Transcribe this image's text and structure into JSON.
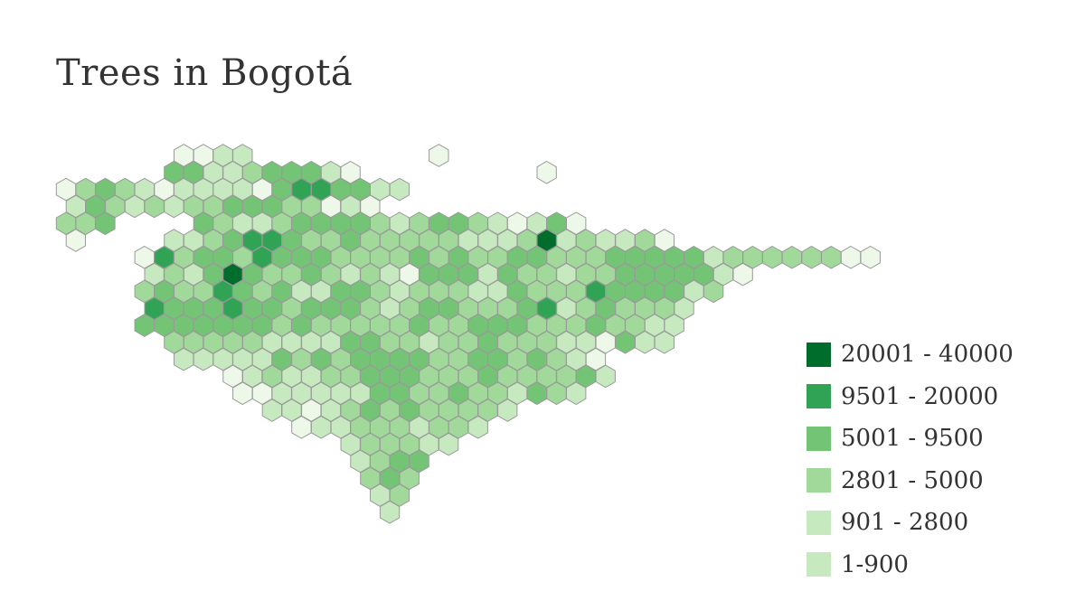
{
  "title": "Trees in Bogotá",
  "legend": [
    {
      "label": "20001 - 40000",
      "color": "#006d2c"
    },
    {
      "label": "9501 - 20000",
      "color": "#31a354"
    },
    {
      "label": "5001 - 9500",
      "color": "#74c476"
    },
    {
      "label": "2801 - 5000",
      "color": "#a1d99b"
    },
    {
      "label": "901 - 2800",
      "color": "#c7e9c0"
    },
    {
      "label": "1-900",
      "color": "#c7e9c0"
    }
  ],
  "hex_fill_palette": [
    "#edf8e9",
    "#c7e9c0",
    "#a1d99b",
    "#74c476",
    "#31a354",
    "#006d2c"
  ],
  "hex_stroke_color": "#9a9a9a"
}
